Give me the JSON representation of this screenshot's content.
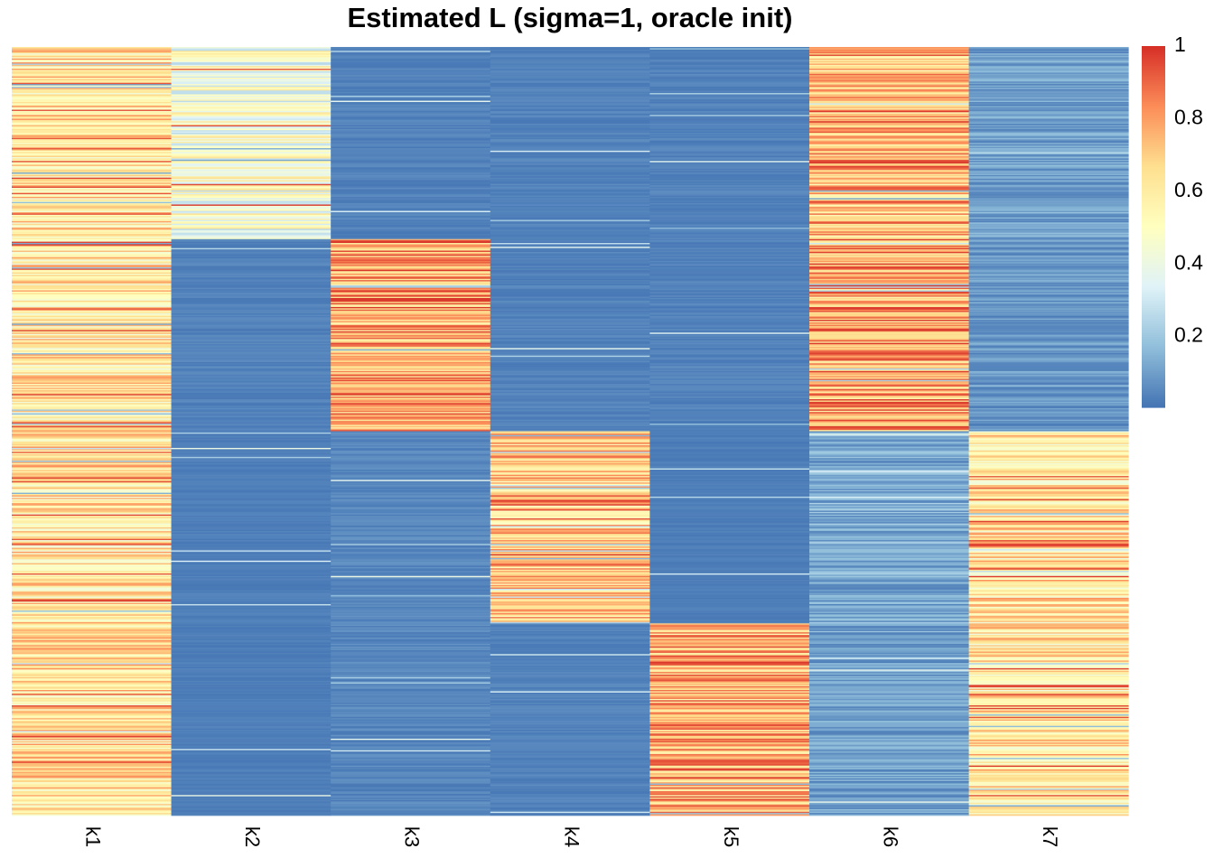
{
  "chart_data": {
    "type": "heatmap",
    "title": "Estimated L (sigma=1, oracle init)",
    "columns": [
      "k1",
      "k2",
      "k3",
      "k4",
      "k5",
      "k6",
      "k7"
    ],
    "n_rows": 600,
    "value_range": [
      0,
      1
    ],
    "colorbar": {
      "ticks": [
        "0.2",
        "0.4",
        "0.6",
        "0.8",
        "1"
      ],
      "tick_values": [
        0.2,
        0.4,
        0.6,
        0.8,
        1.0
      ],
      "colors": [
        "#4575B4",
        "#91BFDB",
        "#E0F3F8",
        "#FFFFBF",
        "#FEE090",
        "#FC8D59",
        "#D73027"
      ]
    },
    "row_blocks": [
      {
        "rows": "1-150",
        "high_columns": [
          "k1",
          "k2",
          "k6"
        ],
        "approx_means": {
          "k1": 0.62,
          "k2": 0.45,
          "k3": 0.03,
          "k4": 0.03,
          "k5": 0.03,
          "k6": 0.72,
          "k7": 0.1
        }
      },
      {
        "rows": "151-300",
        "high_columns": [
          "k1",
          "k3",
          "k6"
        ],
        "approx_means": {
          "k1": 0.6,
          "k2": 0.03,
          "k3": 0.78,
          "k4": 0.03,
          "k5": 0.03,
          "k6": 0.78,
          "k7": 0.08
        }
      },
      {
        "rows": "301-450",
        "high_columns": [
          "k1",
          "k4",
          "k7"
        ],
        "approx_means": {
          "k1": 0.62,
          "k2": 0.02,
          "k3": 0.04,
          "k4": 0.68,
          "k5": 0.02,
          "k6": 0.12,
          "k7": 0.62
        }
      },
      {
        "rows": "451-600",
        "high_columns": [
          "k1",
          "k5",
          "k7"
        ],
        "approx_means": {
          "k1": 0.62,
          "k2": 0.02,
          "k3": 0.04,
          "k4": 0.03,
          "k5": 0.75,
          "k6": 0.1,
          "k7": 0.62
        }
      }
    ]
  }
}
